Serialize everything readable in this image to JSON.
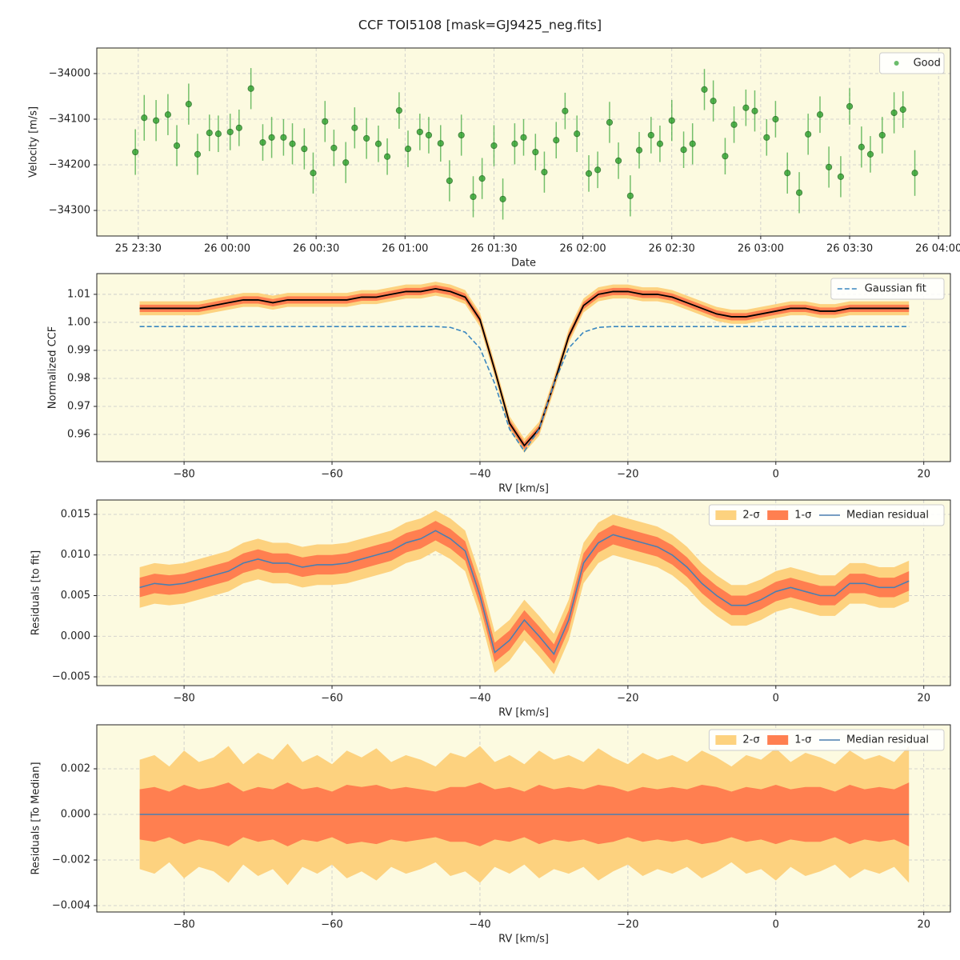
{
  "title": "CCF TOI5108 [mask=GJ9425_neg.fits]",
  "chart_data": [
    {
      "type": "scatter",
      "xlabel": "Date",
      "ylabel": "Velocity [m/s]",
      "grid": true,
      "legend": "upper right",
      "background": "#fcfae0",
      "x": [
        "25 23:29",
        "25 23:32",
        "25 23:36",
        "25 23:40",
        "25 23:43",
        "25 23:47",
        "25 23:50",
        "25 23:54",
        "25 23:57",
        "26 00:01",
        "26 00:04",
        "26 00:08",
        "26 00:12",
        "26 00:15",
        "26 00:19",
        "26 00:22",
        "26 00:26",
        "26 00:29",
        "26 00:33",
        "26 00:36",
        "26 00:40",
        "26 00:43",
        "26 00:47",
        "26 00:51",
        "26 00:54",
        "26 00:58",
        "26 01:01",
        "26 01:05",
        "26 01:08",
        "26 01:12",
        "26 01:15",
        "26 01:19",
        "26 01:23",
        "26 01:26",
        "26 01:30",
        "26 01:33",
        "26 01:37",
        "26 01:40",
        "26 01:44",
        "26 01:47",
        "26 01:51",
        "26 01:54",
        "26 01:58",
        "26 02:02",
        "26 02:05",
        "26 02:09",
        "26 02:12",
        "26 02:16",
        "26 02:19",
        "26 02:23",
        "26 02:26",
        "26 02:30",
        "26 02:34",
        "26 02:37",
        "26 02:41",
        "26 02:44",
        "26 02:48",
        "26 02:51",
        "26 02:55",
        "26 02:58",
        "26 03:02",
        "26 03:05",
        "26 03:09",
        "26 03:13",
        "26 03:16",
        "26 03:20",
        "26 03:23",
        "26 03:27",
        "26 03:30",
        "26 03:34",
        "26 03:37",
        "26 03:41",
        "26 03:45",
        "26 03:48",
        "26 03:52"
      ],
      "series": [
        {
          "name": "Good",
          "color": "#2ca02c",
          "values": [
            -34172,
            -34097,
            -34103,
            -34090,
            -34158,
            -34067,
            -34177,
            -34130,
            -34132,
            -34128,
            -34119,
            -34033,
            -34151,
            -34140,
            -34140,
            -34154,
            -34165,
            -34218,
            -34105,
            -34163,
            -34195,
            -34119,
            -34142,
            -34154,
            -34182,
            -34081,
            -34165,
            -34128,
            -34135,
            -34153,
            -34235,
            -34135,
            -34270,
            -34230,
            -34158,
            -34275,
            -34154,
            -34140,
            -34172,
            -34216,
            -34146,
            -34082,
            -34132,
            -34219,
            -34211,
            -34107,
            -34191,
            -34268,
            -34168,
            -34135,
            -34154,
            -34103,
            -34167,
            -34154,
            -34035,
            -34060,
            -34181,
            -34112,
            -34075,
            -34082,
            -34140,
            -34100,
            -34218,
            -34261,
            -34133,
            -34090,
            -34205,
            -34226,
            -34072,
            -34161,
            -34177,
            -34135,
            -34086,
            -34079,
            -34218
          ],
          "errors": [
            50,
            50,
            45,
            45,
            45,
            45,
            45,
            40,
            40,
            40,
            40,
            45,
            40,
            45,
            40,
            45,
            45,
            45,
            45,
            40,
            45,
            45,
            45,
            40,
            40,
            40,
            40,
            40,
            40,
            40,
            45,
            45,
            45,
            45,
            45,
            45,
            45,
            40,
            40,
            45,
            40,
            40,
            40,
            40,
            40,
            45,
            40,
            45,
            40,
            40,
            40,
            45,
            40,
            45,
            45,
            45,
            40,
            40,
            40,
            45,
            40,
            40,
            45,
            45,
            45,
            40,
            45,
            45,
            40,
            45,
            40,
            40,
            45,
            40,
            50
          ]
        }
      ],
      "xlim": [
        "25 23:16",
        "26 04:04"
      ],
      "xticks": [
        "25 23:30",
        "26 00:00",
        "26 00:30",
        "26 01:00",
        "26 01:30",
        "26 02:00",
        "26 02:30",
        "26 03:00",
        "26 03:30",
        "26 04:00"
      ],
      "ylim": [
        -34356,
        -33944
      ],
      "yticks": [
        {
          "value": -34300,
          "label": "−34300"
        },
        {
          "value": -34200,
          "label": "−34200"
        },
        {
          "value": -34100,
          "label": "−34100"
        },
        {
          "value": -34000,
          "label": "−34000"
        }
      ]
    },
    {
      "type": "line",
      "xlabel": "RV [km/s]",
      "ylabel": "Normalized CCF",
      "grid": true,
      "legend": "upper right",
      "background": "#fcfae0",
      "x": [
        -86,
        -84,
        -82,
        -80,
        -78,
        -76,
        -74,
        -72,
        -70,
        -68,
        -66,
        -64,
        -62,
        -60,
        -58,
        -56,
        -54,
        -52,
        -50,
        -48,
        -46,
        -44,
        -42,
        -40,
        -38,
        -36,
        -34,
        -32,
        -30,
        -28,
        -26,
        -24,
        -22,
        -20,
        -18,
        -16,
        -14,
        -12,
        -10,
        -8,
        -6,
        -4,
        -2,
        0,
        2,
        4,
        6,
        8,
        10,
        12,
        14,
        16,
        18
      ],
      "series": [
        {
          "color": "#fdd27f",
          "error": 0.0025
        },
        {
          "color": "#ff7f50",
          "error": 0.0013
        },
        {
          "color": "#000000",
          "values": [
            1.005,
            1.005,
            1.005,
            1.005,
            1.005,
            1.006,
            1.007,
            1.008,
            1.008,
            1.007,
            1.008,
            1.008,
            1.008,
            1.008,
            1.008,
            1.009,
            1.009,
            1.01,
            1.011,
            1.011,
            1.012,
            1.011,
            1.009,
            1.001,
            0.983,
            0.964,
            0.956,
            0.962,
            0.978,
            0.995,
            1.006,
            1.01,
            1.011,
            1.011,
            1.01,
            1.01,
            1.009,
            1.007,
            1.005,
            1.003,
            1.002,
            1.002,
            1.003,
            1.004,
            1.005,
            1.005,
            1.004,
            1.004,
            1.005,
            1.005,
            1.005,
            1.005,
            1.005
          ]
        },
        {
          "name": "Gaussian fit",
          "color": "#3a87c0",
          "linestyle": "dashed",
          "values": [
            0.9985,
            0.9985,
            0.9985,
            0.9985,
            0.9985,
            0.9985,
            0.9985,
            0.9985,
            0.9985,
            0.9985,
            0.9985,
            0.9985,
            0.9985,
            0.9985,
            0.9985,
            0.9985,
            0.9985,
            0.9985,
            0.9985,
            0.9985,
            0.9985,
            0.9982,
            0.9965,
            0.9908,
            0.9781,
            0.9619,
            0.954,
            0.9619,
            0.9781,
            0.9908,
            0.9965,
            0.9982,
            0.9985,
            0.9985,
            0.9985,
            0.9985,
            0.9985,
            0.9985,
            0.9985,
            0.9985,
            0.9985,
            0.9985,
            0.9985,
            0.9985,
            0.9985,
            0.9985,
            0.9985,
            0.9985,
            0.9985,
            0.9985,
            0.9985,
            0.9985,
            0.9985
          ]
        }
      ],
      "xlim": [
        -91.8,
        23.6
      ],
      "xticks": [
        {
          "value": -80,
          "label": "−80"
        },
        {
          "value": -60,
          "label": "−60"
        },
        {
          "value": -40,
          "label": "−40"
        },
        {
          "value": -20,
          "label": "−20"
        },
        0,
        20
      ],
      "ylim": [
        0.9503,
        1.0174
      ],
      "yticks": [
        0.96,
        0.97,
        0.98,
        0.99,
        {
          "value": 1.0,
          "label": "1.00"
        },
        1.01
      ]
    },
    {
      "type": "line",
      "xlabel": "RV [km/s]",
      "ylabel": "Residuals [to fit]",
      "grid": true,
      "legend": "upper right",
      "background": "#fcfae0",
      "x": [
        -86,
        -84,
        -82,
        -80,
        -78,
        -76,
        -74,
        -72,
        -70,
        -68,
        -66,
        -64,
        -62,
        -60,
        -58,
        -56,
        -54,
        -52,
        -50,
        -48,
        -46,
        -44,
        -42,
        -40,
        -38,
        -36,
        -34,
        -32,
        -30,
        -28,
        -26,
        -24,
        -22,
        -20,
        -18,
        -16,
        -14,
        -12,
        -10,
        -8,
        -6,
        -4,
        -2,
        0,
        2,
        4,
        6,
        8,
        10,
        12,
        14,
        16,
        18
      ],
      "series": [
        {
          "name": "2-σ",
          "color": "#fdd27f",
          "error": 0.0025
        },
        {
          "name": "1-σ",
          "color": "#ff7f50",
          "error": 0.0012
        },
        {
          "name": "Median residual",
          "color": "#4c7fb0",
          "values": [
            0.006,
            0.0065,
            0.0063,
            0.0065,
            0.007,
            0.0075,
            0.008,
            0.009,
            0.0095,
            0.009,
            0.009,
            0.0085,
            0.0088,
            0.0088,
            0.009,
            0.0095,
            0.01,
            0.0105,
            0.0115,
            0.012,
            0.013,
            0.012,
            0.0105,
            0.005,
            -0.002,
            -0.0005,
            0.002,
            0.0,
            -0.0022,
            0.002,
            0.009,
            0.0115,
            0.0125,
            0.012,
            0.0115,
            0.011,
            0.01,
            0.0085,
            0.0065,
            0.005,
            0.0038,
            0.0038,
            0.0045,
            0.0055,
            0.006,
            0.0055,
            0.005,
            0.005,
            0.0065,
            0.0065,
            0.006,
            0.006,
            0.0068
          ]
        }
      ],
      "xlim": [
        -91.8,
        23.6
      ],
      "xticks": [
        {
          "value": -80,
          "label": "−80"
        },
        {
          "value": -60,
          "label": "−60"
        },
        {
          "value": -40,
          "label": "−40"
        },
        {
          "value": -20,
          "label": "−20"
        },
        0,
        20
      ],
      "ylim": [
        -0.00608,
        0.01677
      ],
      "yticks": [
        {
          "value": -0.005,
          "label": "−0.005"
        },
        {
          "value": 0,
          "label": "0.000"
        },
        0.005,
        {
          "value": 0.01,
          "label": "0.010"
        },
        0.015
      ]
    },
    {
      "type": "line",
      "xlabel": "RV [km/s]",
      "ylabel": "Residuals [To Median]",
      "grid": true,
      "legend": "upper right",
      "background": "#fcfae0",
      "x": [
        -86,
        -84,
        -82,
        -80,
        -78,
        -76,
        -74,
        -72,
        -70,
        -68,
        -66,
        -64,
        -62,
        -60,
        -58,
        -56,
        -54,
        -52,
        -50,
        -48,
        -46,
        -44,
        -42,
        -40,
        -38,
        -36,
        -34,
        -32,
        -30,
        -28,
        -26,
        -24,
        -22,
        -20,
        -18,
        -16,
        -14,
        -12,
        -10,
        -8,
        -6,
        -4,
        -2,
        0,
        2,
        4,
        6,
        8,
        10,
        12,
        14,
        16,
        18
      ],
      "series": [
        {
          "name": "2-σ",
          "color": "#fdd27f",
          "errors": [
            0.0024,
            0.0026,
            0.0021,
            0.0028,
            0.0023,
            0.0025,
            0.003,
            0.0022,
            0.0027,
            0.0024,
            0.0031,
            0.0023,
            0.0026,
            0.0022,
            0.0028,
            0.0025,
            0.0029,
            0.0023,
            0.0026,
            0.0024,
            0.0021,
            0.0027,
            0.0025,
            0.003,
            0.0023,
            0.0026,
            0.0022,
            0.0028,
            0.0024,
            0.0026,
            0.0023,
            0.0029,
            0.0025,
            0.0022,
            0.0027,
            0.0024,
            0.0026,
            0.0023,
            0.0028,
            0.0025,
            0.0021,
            0.0026,
            0.0024,
            0.0029,
            0.0023,
            0.0027,
            0.0025,
            0.0022,
            0.0028,
            0.0024,
            0.0026,
            0.0023,
            0.003
          ]
        },
        {
          "name": "1-σ",
          "color": "#ff7f50",
          "errors": [
            0.0011,
            0.0012,
            0.001,
            0.0013,
            0.0011,
            0.0012,
            0.0014,
            0.001,
            0.0012,
            0.0011,
            0.0014,
            0.0011,
            0.0012,
            0.001,
            0.0013,
            0.0012,
            0.0013,
            0.0011,
            0.0012,
            0.0011,
            0.001,
            0.0012,
            0.0012,
            0.0014,
            0.0011,
            0.0012,
            0.001,
            0.0013,
            0.0011,
            0.0012,
            0.0011,
            0.0013,
            0.0012,
            0.001,
            0.0012,
            0.0011,
            0.0012,
            0.0011,
            0.0013,
            0.0012,
            0.001,
            0.0012,
            0.0011,
            0.0013,
            0.0011,
            0.0012,
            0.0012,
            0.001,
            0.0013,
            0.0011,
            0.0012,
            0.0011,
            0.0014
          ]
        },
        {
          "name": "Median residual",
          "color": "#4c7fb0",
          "values": [
            0,
            0,
            0,
            0,
            0,
            0,
            0,
            0,
            0,
            0,
            0,
            0,
            0,
            0,
            0,
            0,
            0,
            0,
            0,
            0,
            0,
            0,
            0,
            0,
            0,
            0,
            0,
            0,
            0,
            0,
            0,
            0,
            0,
            0,
            0,
            0,
            0,
            0,
            0,
            0,
            0,
            0,
            0,
            0,
            0,
            0,
            0,
            0,
            0,
            0,
            0,
            0,
            0
          ]
        }
      ],
      "xlim": [
        -91.8,
        23.6
      ],
      "xticks": [
        {
          "value": -80,
          "label": "−80"
        },
        {
          "value": -60,
          "label": "−60"
        },
        {
          "value": -40,
          "label": "−40"
        },
        {
          "value": -20,
          "label": "−20"
        },
        0,
        20
      ],
      "ylim": [
        -0.00428,
        0.00393
      ],
      "yticks": [
        {
          "value": -0.004,
          "label": "−0.004"
        },
        {
          "value": -0.002,
          "label": "−0.002"
        },
        {
          "value": 0,
          "label": "0.000"
        },
        0.002
      ]
    }
  ]
}
